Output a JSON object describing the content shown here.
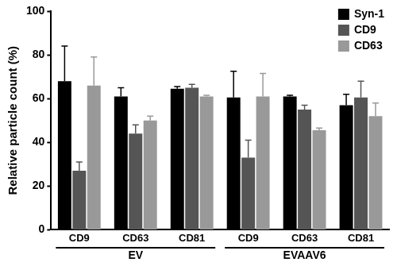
{
  "chart_data": {
    "type": "bar",
    "y_label": "Relative particle count (%)",
    "categories": [
      "CD9",
      "CD63",
      "CD81",
      "CD9",
      "CD63",
      "CD81"
    ],
    "groups": [
      {
        "label": "EV",
        "count": 3
      },
      {
        "label": "EVAAV6",
        "count": 3
      }
    ],
    "series": [
      {
        "name": "Syn-1",
        "color": "#000000",
        "values": [
          68,
          61,
          64.5,
          60.5,
          61,
          57
        ],
        "errors": [
          16,
          4,
          1,
          12,
          0.5,
          5
        ]
      },
      {
        "name": "CD9",
        "color": "#555555",
        "values": [
          27,
          44,
          65,
          33,
          55,
          60.5
        ],
        "errors": [
          4,
          4,
          1.5,
          8,
          2,
          7.5
        ]
      },
      {
        "name": "CD63",
        "color": "#999999",
        "values": [
          66,
          50,
          61,
          61,
          45.5,
          52
        ],
        "errors": [
          13,
          2,
          0.5,
          10.5,
          1,
          6
        ]
      }
    ],
    "ylim": [
      0,
      100
    ],
    "yticks": [
      0,
      20,
      40,
      60,
      80,
      100
    ],
    "grid": false,
    "legend": "upper right"
  }
}
